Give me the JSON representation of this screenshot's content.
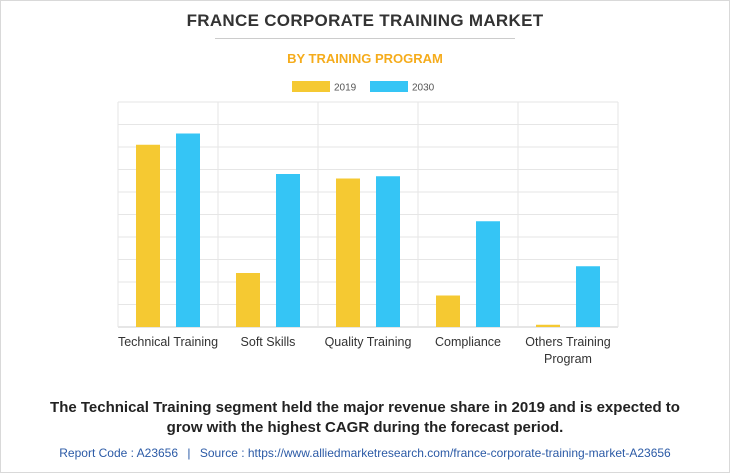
{
  "header": {
    "title": "FRANCE CORPORATE TRAINING MARKET",
    "subtitle": "BY TRAINING PROGRAM"
  },
  "chart_data": {
    "type": "bar",
    "categories": [
      "Technical Training",
      "Soft Skills",
      "Quality Training",
      "Compliance",
      "Others Training Program"
    ],
    "category_lines": [
      [
        "Technical Training"
      ],
      [
        "Soft Skills"
      ],
      [
        "Quality Training"
      ],
      [
        "Compliance"
      ],
      [
        "Others Training",
        "Program"
      ]
    ],
    "series": [
      {
        "name": "2019",
        "color": "#f5c932",
        "values": [
          81,
          24,
          66,
          14,
          1
        ]
      },
      {
        "name": "2030",
        "color": "#35c5f5",
        "values": [
          86,
          68,
          67,
          47,
          27
        ]
      }
    ],
    "ylim": [
      0,
      100
    ],
    "y_tick_step": 10,
    "grid": true,
    "legend_position": "top-center",
    "y_tick_labels_shown": false
  },
  "conclusion": {
    "line1": "The Technical Training segment held the major revenue share in 2019 and is expected to",
    "line2": "grow with the highest CAGR during the forecast period."
  },
  "footer": {
    "report_code": "Report Code : A23656",
    "separator": "|",
    "source": "Source : https://www.alliedmarketresearch.com/france-corporate-training-market-A23656"
  }
}
